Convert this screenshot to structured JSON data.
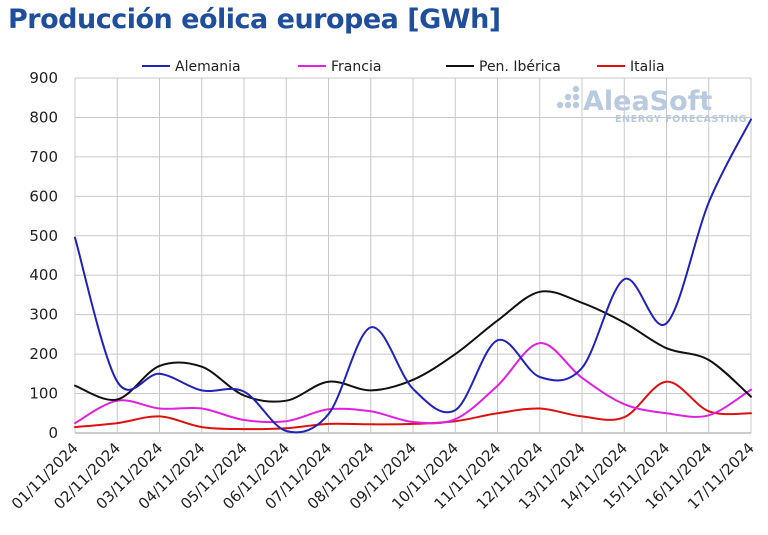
{
  "chart_data": {
    "type": "line",
    "title": "Producción eólica europea [GWh]",
    "xlabel": "",
    "ylabel": "",
    "ylim": [
      0,
      900
    ],
    "yticks": [
      0,
      100,
      200,
      300,
      400,
      500,
      600,
      700,
      800,
      900
    ],
    "grid": true,
    "legend_position": "top",
    "x": [
      "01/11/2024",
      "02/11/2024",
      "03/11/2024",
      "04/11/2024",
      "05/11/2024",
      "06/11/2024",
      "07/11/2024",
      "08/11/2024",
      "09/11/2024",
      "10/11/2024",
      "11/11/2024",
      "12/11/2024",
      "13/11/2024",
      "14/11/2024",
      "15/11/2024",
      "16/11/2024",
      "17/11/2024"
    ],
    "series": [
      {
        "name": "Alemania",
        "color": "#2222bb",
        "values": [
          495,
          130,
          150,
          108,
          105,
          5,
          48,
          268,
          112,
          58,
          235,
          142,
          165,
          390,
          278,
          585,
          795
        ]
      },
      {
        "name": "Francia",
        "color": "#e020e0",
        "values": [
          25,
          82,
          62,
          62,
          33,
          30,
          60,
          55,
          28,
          35,
          120,
          228,
          140,
          73,
          50,
          45,
          110
        ]
      },
      {
        "name": "Pen. Ibérica",
        "color": "#111111",
        "values": [
          120,
          85,
          170,
          168,
          95,
          82,
          130,
          108,
          135,
          200,
          285,
          358,
          330,
          280,
          215,
          185,
          92
        ]
      },
      {
        "name": "Italia",
        "color": "#dd1111",
        "values": [
          15,
          25,
          42,
          15,
          10,
          12,
          23,
          22,
          23,
          30,
          50,
          62,
          42,
          40,
          130,
          55,
          50
        ]
      }
    ]
  },
  "logo": {
    "name": "AleaSoft",
    "tagline": "ENERGY FORECASTING"
  }
}
